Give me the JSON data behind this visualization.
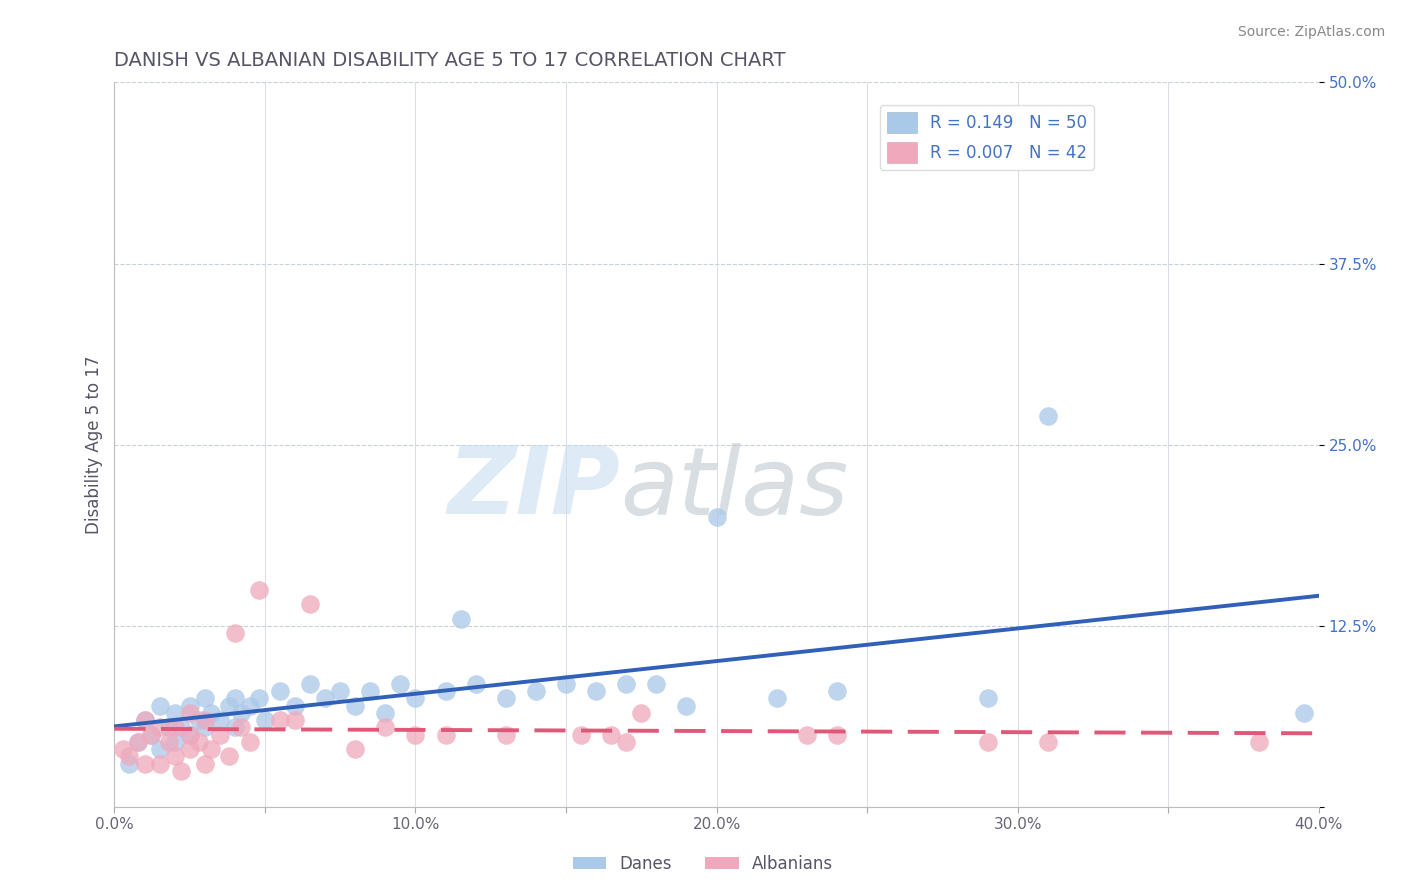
{
  "title": "DANISH VS ALBANIAN DISABILITY AGE 5 TO 17 CORRELATION CHART",
  "source": "Source: ZipAtlas.com",
  "ylabel": "Disability Age 5 to 17",
  "xlim": [
    0.0,
    0.4
  ],
  "ylim": [
    0.0,
    0.5
  ],
  "xticks": [
    0.0,
    0.05,
    0.1,
    0.15,
    0.2,
    0.25,
    0.3,
    0.35,
    0.4
  ],
  "xtick_labels": [
    "0.0%",
    "",
    "10.0%",
    "",
    "20.0%",
    "",
    "30.0%",
    "",
    "40.0%"
  ],
  "yticks": [
    0.0,
    0.125,
    0.25,
    0.375,
    0.5
  ],
  "ytick_labels": [
    "",
    "12.5%",
    "25.0%",
    "37.5%",
    "50.0%"
  ],
  "danes_R": 0.149,
  "danes_N": 50,
  "albanians_R": 0.007,
  "albanians_N": 42,
  "danes_color": "#aac8e8",
  "albanians_color": "#f0a8bc",
  "danes_line_color": "#3060b8",
  "albanians_line_color": "#e05878",
  "danes_x": [
    0.005,
    0.008,
    0.01,
    0.012,
    0.015,
    0.015,
    0.018,
    0.02,
    0.02,
    0.022,
    0.025,
    0.025,
    0.028,
    0.03,
    0.03,
    0.032,
    0.035,
    0.038,
    0.04,
    0.04,
    0.042,
    0.045,
    0.048,
    0.05,
    0.055,
    0.06,
    0.065,
    0.07,
    0.075,
    0.08,
    0.085,
    0.09,
    0.095,
    0.1,
    0.11,
    0.115,
    0.12,
    0.13,
    0.14,
    0.15,
    0.16,
    0.17,
    0.18,
    0.19,
    0.2,
    0.22,
    0.24,
    0.29,
    0.31,
    0.395
  ],
  "danes_y": [
    0.03,
    0.045,
    0.06,
    0.05,
    0.04,
    0.07,
    0.055,
    0.045,
    0.065,
    0.055,
    0.05,
    0.07,
    0.06,
    0.055,
    0.075,
    0.065,
    0.06,
    0.07,
    0.055,
    0.075,
    0.065,
    0.07,
    0.075,
    0.06,
    0.08,
    0.07,
    0.085,
    0.075,
    0.08,
    0.07,
    0.08,
    0.065,
    0.085,
    0.075,
    0.08,
    0.13,
    0.085,
    0.075,
    0.08,
    0.085,
    0.08,
    0.085,
    0.085,
    0.07,
    0.2,
    0.075,
    0.08,
    0.075,
    0.27,
    0.065
  ],
  "albanians_x": [
    0.003,
    0.005,
    0.008,
    0.01,
    0.01,
    0.012,
    0.015,
    0.015,
    0.018,
    0.02,
    0.02,
    0.022,
    0.025,
    0.025,
    0.025,
    0.028,
    0.03,
    0.03,
    0.032,
    0.035,
    0.038,
    0.04,
    0.042,
    0.045,
    0.048,
    0.055,
    0.06,
    0.065,
    0.08,
    0.09,
    0.1,
    0.11,
    0.13,
    0.155,
    0.165,
    0.17,
    0.175,
    0.23,
    0.24,
    0.29,
    0.31,
    0.38
  ],
  "albanians_y": [
    0.04,
    0.035,
    0.045,
    0.03,
    0.06,
    0.05,
    0.03,
    0.055,
    0.045,
    0.035,
    0.055,
    0.025,
    0.04,
    0.05,
    0.065,
    0.045,
    0.03,
    0.06,
    0.04,
    0.05,
    0.035,
    0.12,
    0.055,
    0.045,
    0.15,
    0.06,
    0.06,
    0.14,
    0.04,
    0.055,
    0.05,
    0.05,
    0.05,
    0.05,
    0.05,
    0.045,
    0.065,
    0.05,
    0.05,
    0.045,
    0.045,
    0.045
  ],
  "watermark_zip": "ZIP",
  "watermark_atlas": "atlas",
  "background_color": "#ffffff",
  "grid_color": "#c8d0d8",
  "title_color": "#555566",
  "ylabel_color": "#555566",
  "tick_color": "#4472c4",
  "source_color": "#888888"
}
